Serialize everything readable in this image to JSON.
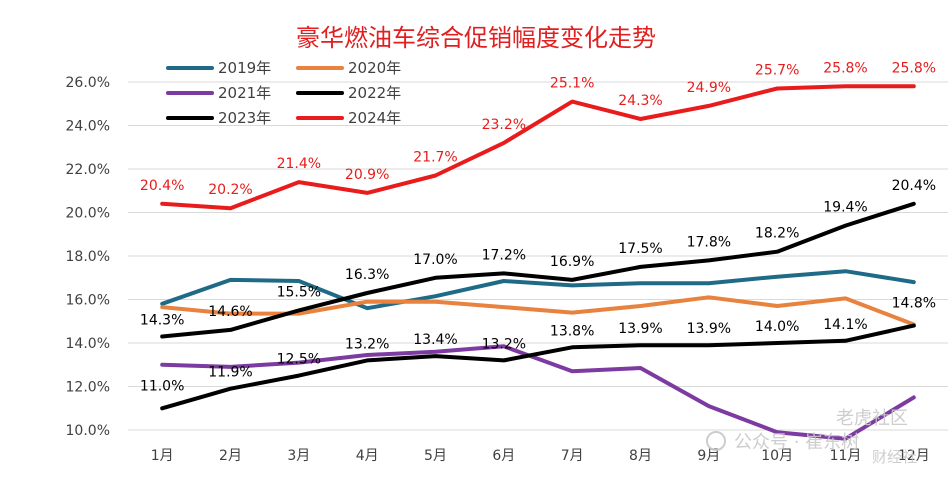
{
  "chart_data": {
    "type": "line",
    "title": "豪华燃油车综合促销幅度变化走势",
    "xlabel": "",
    "ylabel": "",
    "categories": [
      "1月",
      "2月",
      "3月",
      "4月",
      "5月",
      "6月",
      "7月",
      "8月",
      "9月",
      "10月",
      "11月",
      "12月"
    ],
    "y_ticks": [
      "10.0%",
      "12.0%",
      "14.0%",
      "16.0%",
      "18.0%",
      "20.0%",
      "22.0%",
      "24.0%",
      "26.0%"
    ],
    "ylim": [
      10,
      26.5
    ],
    "grid": true,
    "legend_position": "top-left",
    "series": [
      {
        "name": "2019年",
        "color": "#1f6b87",
        "values": [
          15.8,
          16.9,
          16.85,
          15.6,
          16.15,
          16.85,
          16.65,
          16.75,
          16.75,
          17.05,
          17.3,
          16.8
        ]
      },
      {
        "name": "2020年",
        "color": "#e8823f",
        "values": [
          15.65,
          15.35,
          15.35,
          15.9,
          15.9,
          15.65,
          15.4,
          15.7,
          16.1,
          15.7,
          16.05,
          14.85
        ]
      },
      {
        "name": "2021年",
        "color": "#7d3aa1",
        "values": [
          13.0,
          12.9,
          13.1,
          13.45,
          13.6,
          13.85,
          12.7,
          12.85,
          11.1,
          9.9,
          9.6,
          11.5
        ]
      },
      {
        "name": "2022年",
        "color": "#000000",
        "values": [
          11.0,
          11.9,
          12.5,
          13.2,
          13.4,
          13.2,
          13.8,
          13.9,
          13.9,
          14.0,
          14.1,
          14.8
        ]
      },
      {
        "name": "2023年",
        "color": "#000000",
        "values": [
          14.3,
          14.6,
          15.5,
          16.3,
          17.0,
          17.2,
          16.9,
          17.5,
          17.8,
          18.2,
          19.4,
          20.4
        ]
      },
      {
        "name": "2024年",
        "color": "#e81c1c",
        "values": [
          20.4,
          20.2,
          21.4,
          20.9,
          21.7,
          23.2,
          25.1,
          24.3,
          24.9,
          25.7,
          25.8,
          25.8
        ]
      }
    ],
    "data_labels": {
      "2024年": [
        "20.4%",
        "20.2%",
        "21.4%",
        "20.9%",
        "21.7%",
        "23.2%",
        "25.1%",
        "24.3%",
        "24.9%",
        "25.7%",
        "25.8%",
        "25.8%"
      ],
      "2023年": [
        "14.3%",
        "14.6%",
        "15.5%",
        "16.3%",
        "17.0%",
        "17.2%",
        "16.9%",
        "17.5%",
        "17.8%",
        "18.2%",
        "19.4%",
        "20.4%"
      ],
      "2022年": [
        "11.0%",
        "11.9%",
        "12.5%",
        "13.2%",
        "13.4%",
        "13.2%",
        "13.8%",
        "13.9%",
        "13.9%",
        "14.0%",
        "14.1%",
        "14.8%"
      ]
    }
  },
  "watermark": {
    "top": "老虎社区",
    "bottom": "公众号 · 崔东树",
    "corner": "财经社"
  }
}
